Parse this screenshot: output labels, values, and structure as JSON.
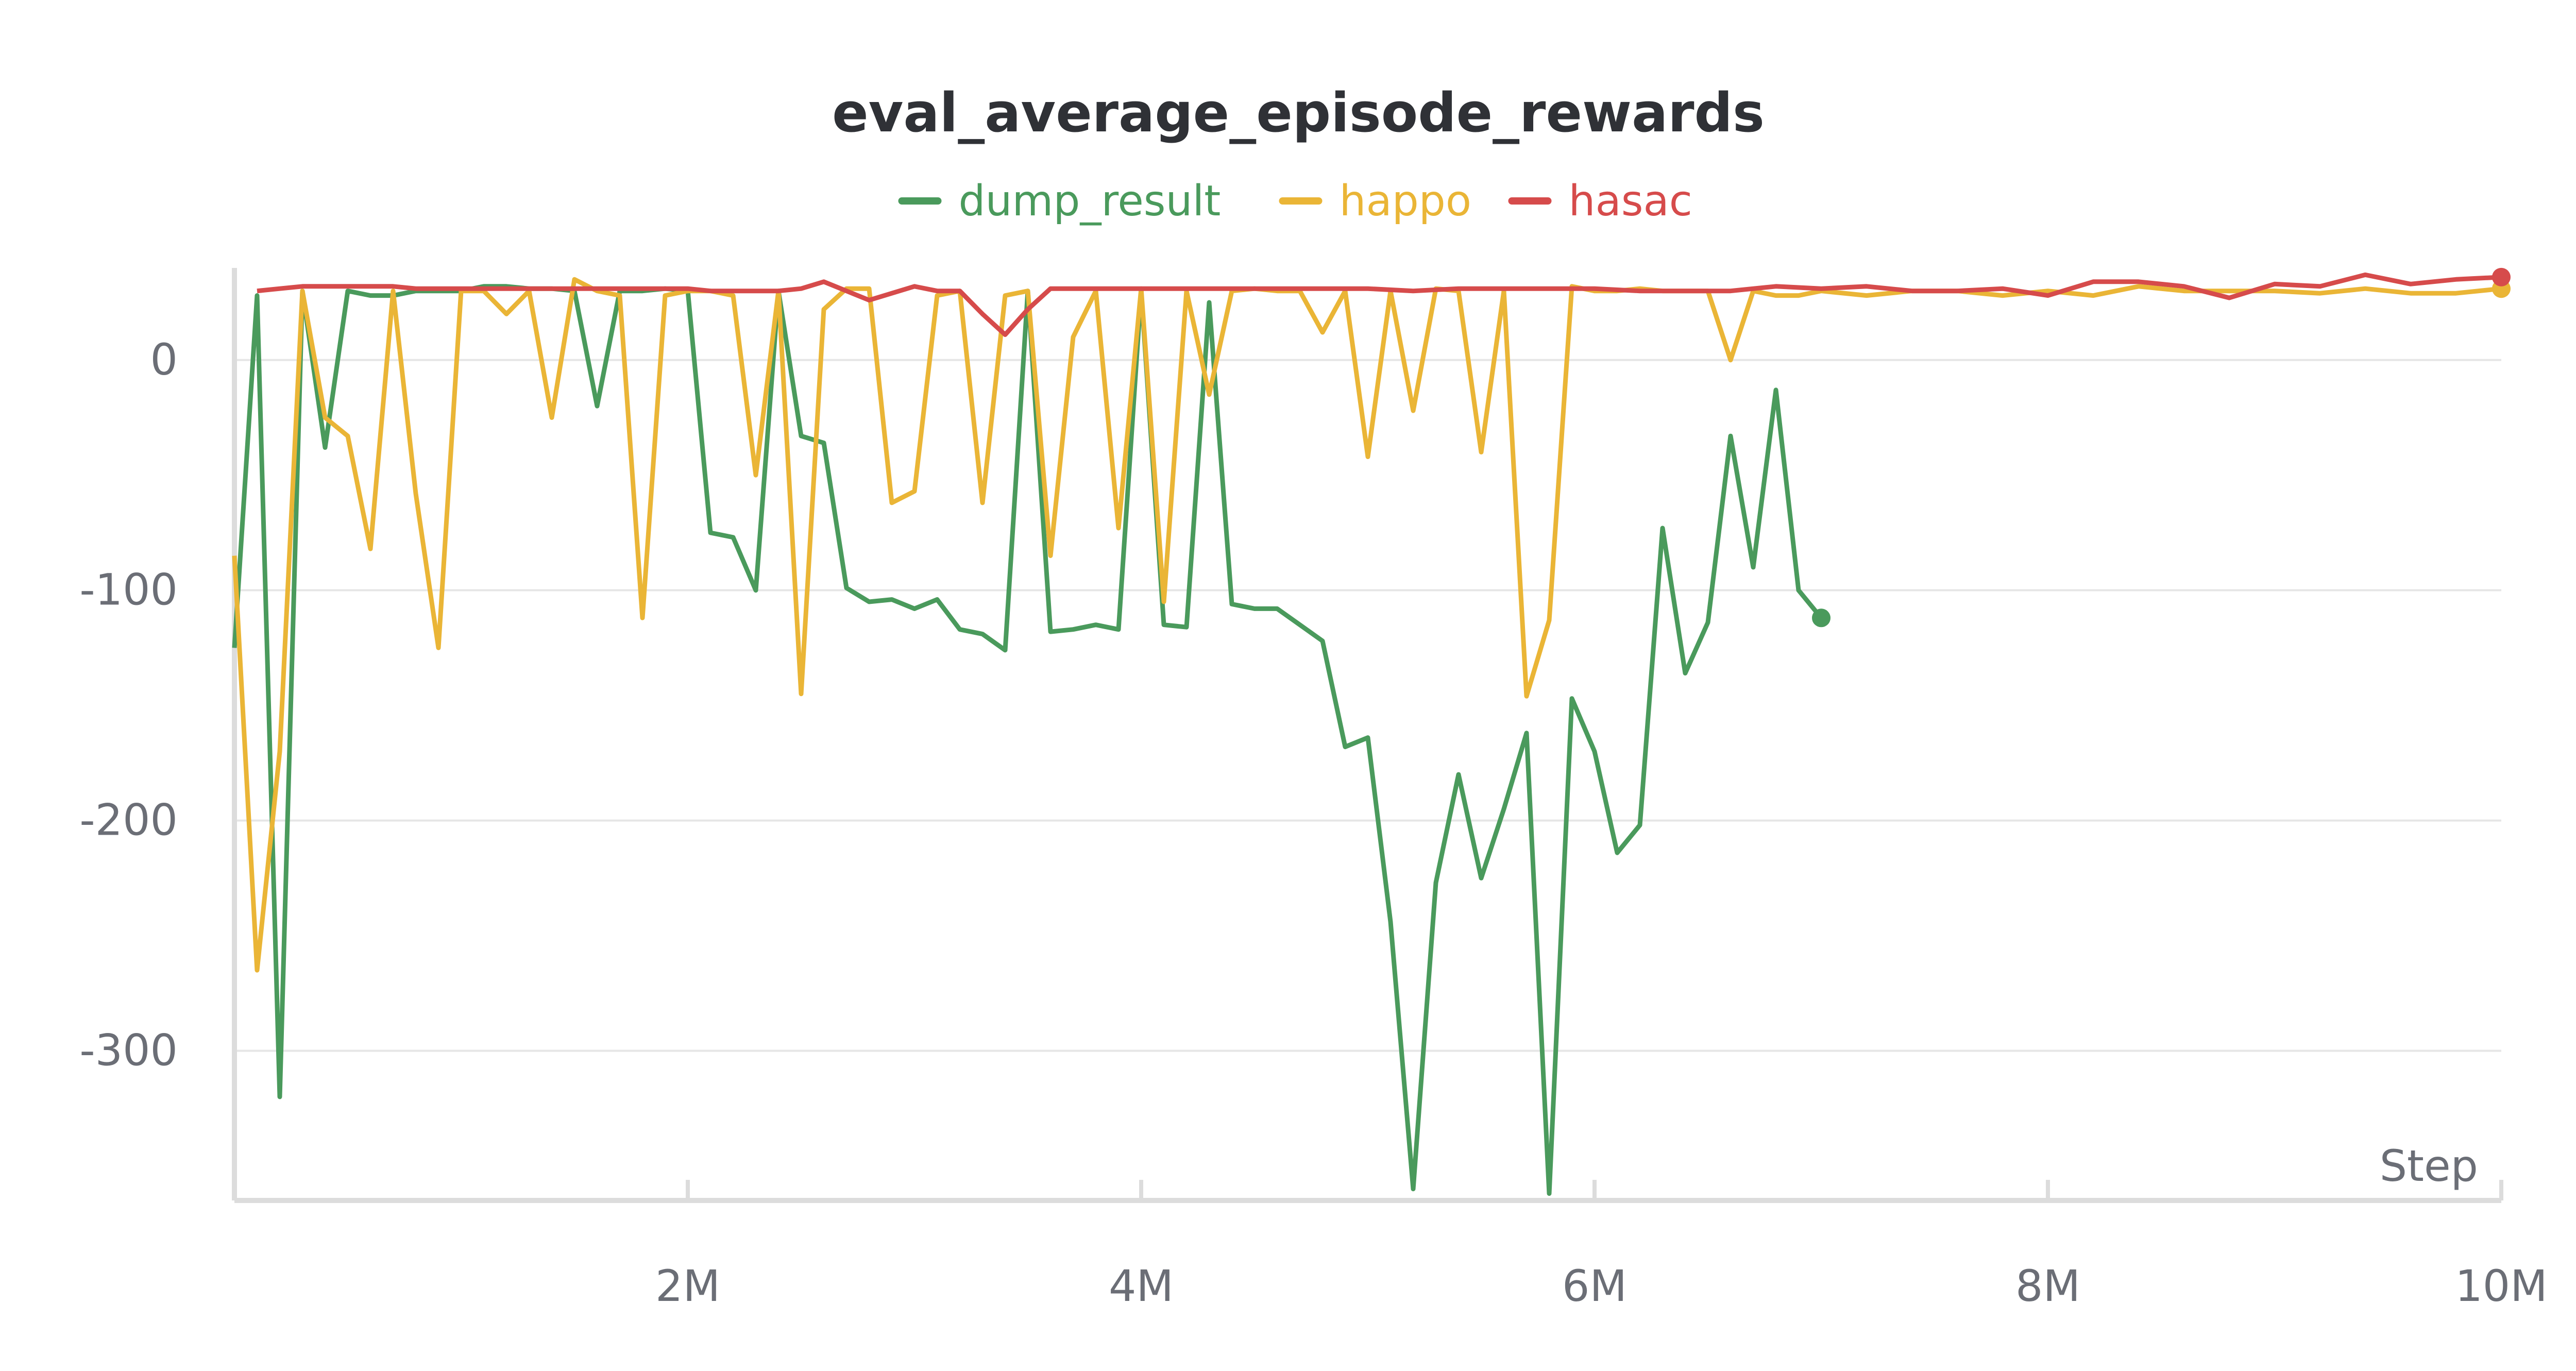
{
  "chart_data": {
    "type": "line",
    "title": "eval_average_episode_rewards",
    "xlabel": "Step",
    "ylabel": "",
    "xlim": [
      0,
      10000000
    ],
    "ylim": [
      -365,
      40
    ],
    "xticks": [
      2000000,
      4000000,
      6000000,
      8000000,
      10000000
    ],
    "xtick_labels": [
      "2M",
      "4M",
      "6M",
      "8M",
      "10M"
    ],
    "yticks": [
      0,
      -100,
      -200,
      -300
    ],
    "ytick_labels": [
      "0",
      "-100",
      "-200",
      "-300"
    ],
    "grid": true,
    "legend_position": "top-center",
    "series": [
      {
        "name": "dump_result",
        "color": "#4a9a5c",
        "x": [
          0,
          100000,
          200000,
          300000,
          400000,
          500000,
          600000,
          700000,
          800000,
          900000,
          1000000,
          1100000,
          1200000,
          1300000,
          1400000,
          1500000,
          1600000,
          1700000,
          1800000,
          1900000,
          2000000,
          2100000,
          2200000,
          2300000,
          2400000,
          2500000,
          2600000,
          2700000,
          2800000,
          2900000,
          3000000,
          3100000,
          3200000,
          3300000,
          3400000,
          3500000,
          3600000,
          3700000,
          3800000,
          3900000,
          4000000,
          4100000,
          4200000,
          4300000,
          4400000,
          4500000,
          4600000,
          4700000,
          4800000,
          4900000,
          5000000,
          5100000,
          5200000,
          5300000,
          5400000,
          5500000,
          5600000,
          5700000,
          5800000,
          5900000,
          6000000,
          6100000,
          6200000,
          6300000,
          6400000,
          6500000,
          6600000,
          6700000,
          6800000,
          6900000,
          7000000
        ],
        "values": [
          -125,
          28,
          -320,
          30,
          -38,
          30,
          28,
          28,
          30,
          30,
          30,
          32,
          32,
          31,
          31,
          30,
          -20,
          30,
          30,
          31,
          30,
          -75,
          -77,
          -100,
          30,
          -33,
          -36,
          -99,
          -105,
          -104,
          -108,
          -104,
          -117,
          -119,
          -126,
          30,
          -118,
          -117,
          -115,
          -117,
          30,
          -115,
          -116,
          25,
          -106,
          -108,
          -108,
          -115,
          -122,
          -168,
          -164,
          -244,
          -360,
          -227,
          -180,
          -225,
          -195,
          -162,
          -362,
          -147,
          -170,
          -214,
          -202,
          -73,
          -136,
          -114,
          -33,
          -90,
          -13,
          -100,
          -112
        ]
      },
      {
        "name": "happo",
        "color": "#eab536",
        "x": [
          0,
          100000,
          200000,
          300000,
          400000,
          500000,
          600000,
          700000,
          800000,
          900000,
          1000000,
          1100000,
          1200000,
          1300000,
          1400000,
          1500000,
          1600000,
          1700000,
          1800000,
          1900000,
          2000000,
          2100000,
          2200000,
          2300000,
          2400000,
          2500000,
          2600000,
          2700000,
          2800000,
          2900000,
          3000000,
          3100000,
          3200000,
          3300000,
          3400000,
          3500000,
          3600000,
          3700000,
          3800000,
          3900000,
          4000000,
          4100000,
          4200000,
          4300000,
          4400000,
          4500000,
          4600000,
          4700000,
          4800000,
          4900000,
          5000000,
          5100000,
          5200000,
          5300000,
          5400000,
          5500000,
          5600000,
          5700000,
          5800000,
          5900000,
          6000000,
          6100000,
          6200000,
          6300000,
          6400000,
          6500000,
          6600000,
          6700000,
          6800000,
          6900000,
          7000000,
          7200000,
          7400000,
          7600000,
          7800000,
          8000000,
          8200000,
          8400000,
          8600000,
          8800000,
          9000000,
          9200000,
          9400000,
          9600000,
          9800000,
          10000000
        ],
        "values": [
          -85,
          -265,
          -170,
          30,
          -25,
          -33,
          -82,
          30,
          -58,
          -125,
          30,
          30,
          20,
          30,
          -25,
          35,
          30,
          28,
          -112,
          28,
          30,
          30,
          28,
          -50,
          30,
          -145,
          22,
          31,
          31,
          -62,
          -57,
          28,
          30,
          -62,
          28,
          30,
          -85,
          10,
          30,
          -73,
          31,
          -105,
          30,
          -15,
          30,
          31,
          30,
          30,
          12,
          30,
          -42,
          30,
          -22,
          31,
          30,
          -40,
          30,
          -146,
          -113,
          32,
          30,
          30,
          31,
          30,
          30,
          30,
          0,
          30,
          28,
          28,
          30,
          28,
          30,
          30,
          28,
          30,
          28,
          32,
          30,
          30,
          30,
          29,
          31,
          29,
          29,
          31
        ]
      },
      {
        "name": "hasac",
        "color": "#d64b4b",
        "x": [
          100000,
          200000,
          300000,
          400000,
          500000,
          600000,
          700000,
          800000,
          900000,
          1000000,
          1100000,
          1200000,
          1300000,
          1400000,
          1500000,
          1600000,
          1700000,
          1800000,
          1900000,
          2000000,
          2100000,
          2200000,
          2300000,
          2400000,
          2500000,
          2600000,
          2700000,
          2800000,
          2900000,
          3000000,
          3100000,
          3200000,
          3300000,
          3400000,
          3500000,
          3600000,
          3800000,
          4000000,
          4200000,
          4400000,
          4600000,
          4800000,
          5000000,
          5200000,
          5400000,
          5600000,
          5800000,
          6000000,
          6200000,
          6400000,
          6600000,
          6800000,
          7000000,
          7200000,
          7400000,
          7600000,
          7800000,
          8000000,
          8200000,
          8400000,
          8600000,
          8800000,
          9000000,
          9200000,
          9400000,
          9600000,
          9800000,
          10000000
        ],
        "values": [
          30,
          31,
          32,
          32,
          32,
          32,
          32,
          31,
          31,
          31,
          31,
          31,
          31,
          31,
          31,
          31,
          31,
          31,
          31,
          31,
          30,
          30,
          30,
          30,
          31,
          34,
          30,
          26,
          29,
          32,
          30,
          30,
          20,
          11,
          22,
          31,
          31,
          31,
          31,
          31,
          31,
          31,
          31,
          30,
          31,
          31,
          31,
          31,
          30,
          30,
          30,
          32,
          31,
          32,
          30,
          30,
          31,
          28,
          34,
          34,
          32,
          27,
          33,
          32,
          37,
          33,
          35,
          36
        ]
      }
    ]
  }
}
